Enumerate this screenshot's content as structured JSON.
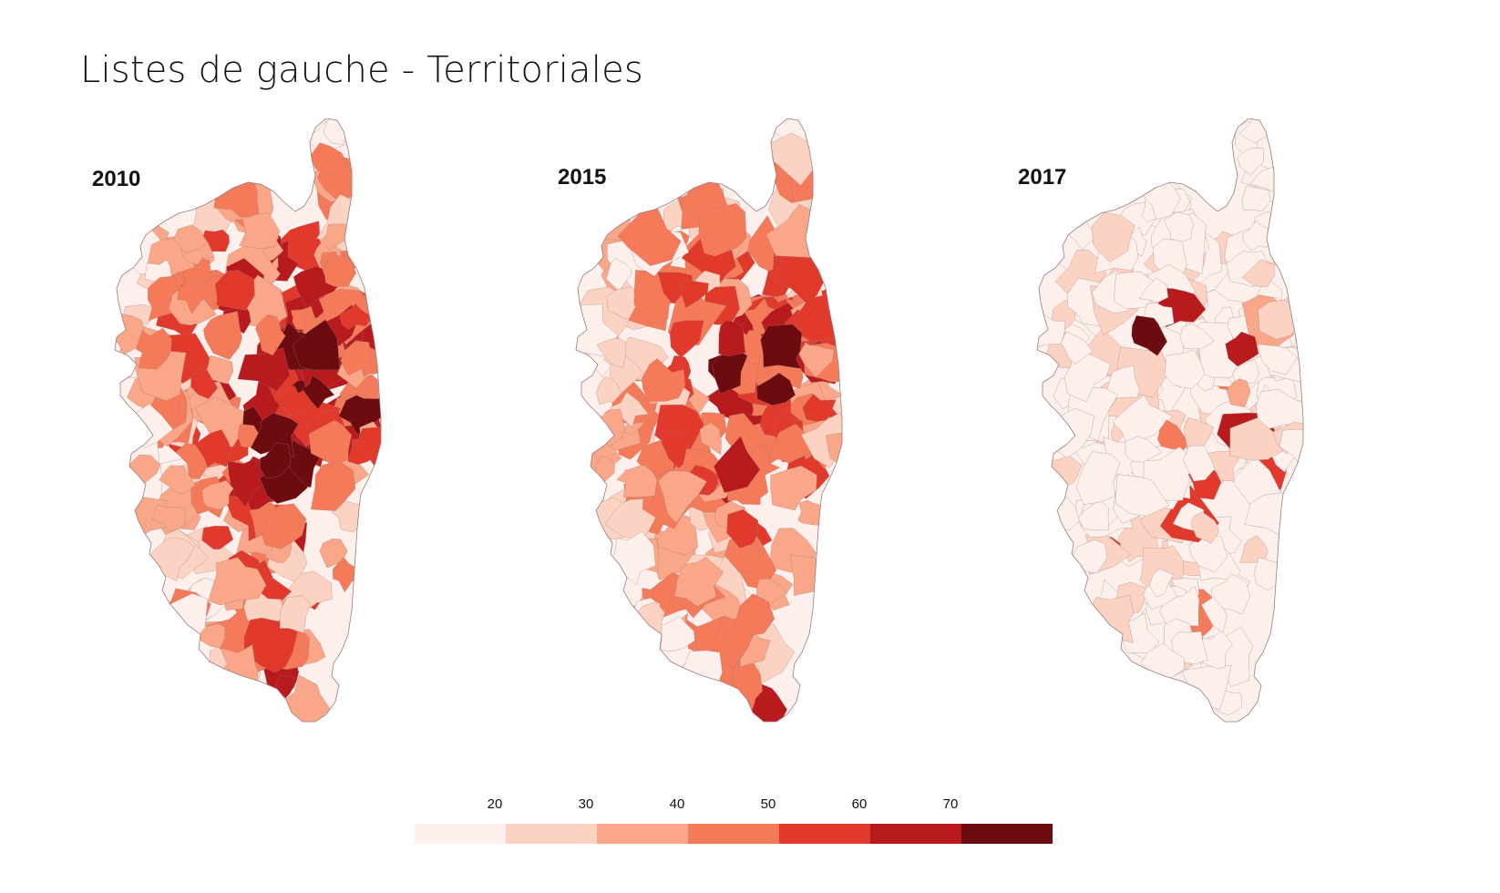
{
  "title": "Listes de gauche - Territoriales",
  "maps": [
    {
      "year": "2010",
      "intensity": 0.72
    },
    {
      "year": "2015",
      "intensity": 0.62
    },
    {
      "year": "2017",
      "intensity": 0.08
    }
  ],
  "legend": {
    "ticks": [
      "20",
      "30",
      "40",
      "50",
      "60",
      "70"
    ],
    "colors": [
      "#fdf0ec",
      "#fcd3c3",
      "#f9a689",
      "#f47a5a",
      "#e2392d",
      "#b81a1e",
      "#6c0b10"
    ]
  },
  "palette": {
    "border": "#9a7b7b",
    "background": "#ffffff"
  }
}
